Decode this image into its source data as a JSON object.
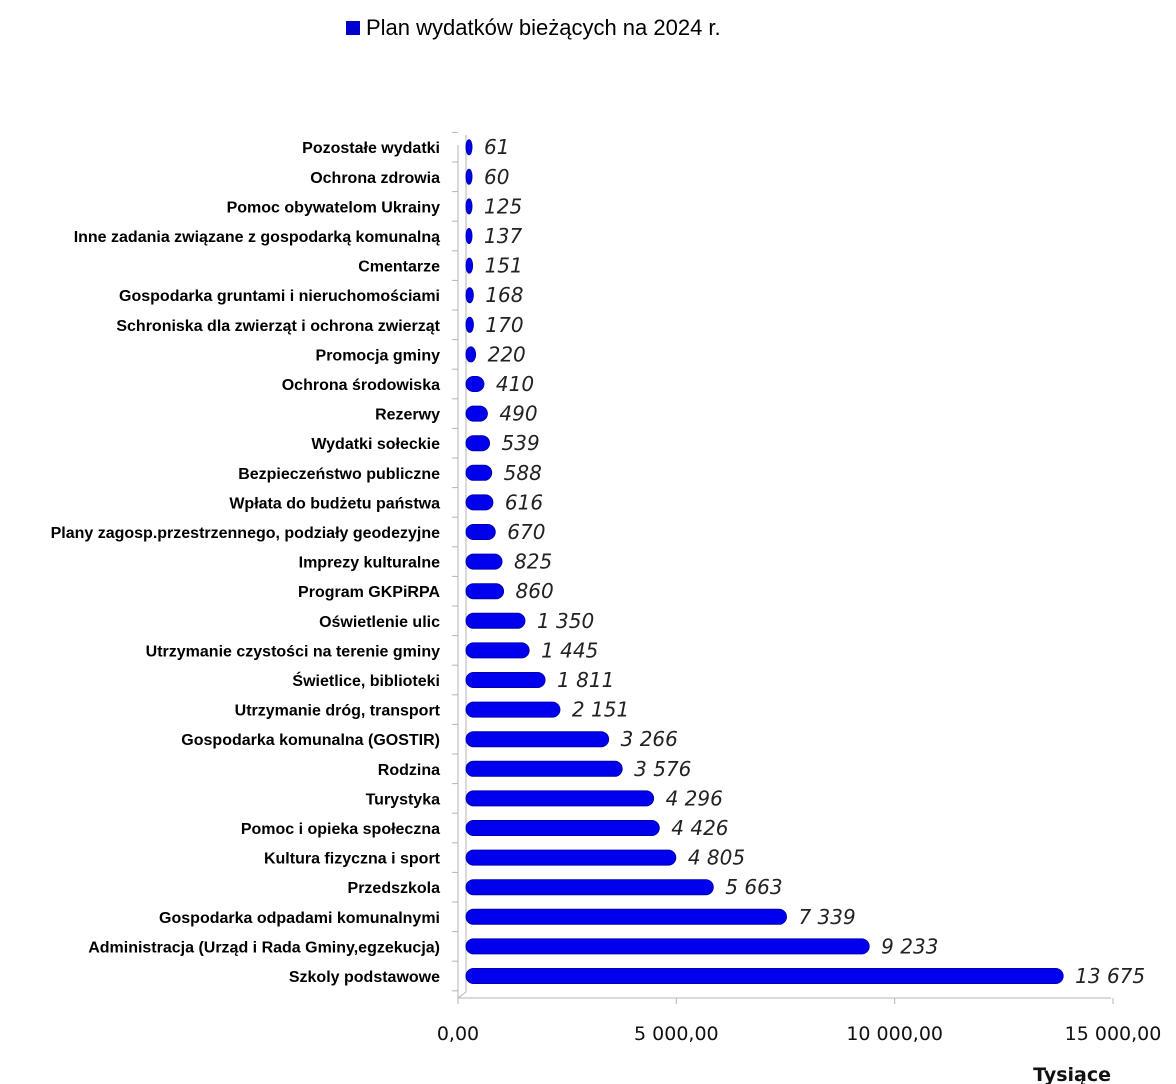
{
  "chart_data": {
    "type": "bar",
    "orientation": "horizontal",
    "legend": {
      "label": "Plan wydatków bieżących na 2024 r.",
      "position": "top",
      "color": "#0000CC"
    },
    "series": [
      {
        "name": "Plan wydatków bieżących na 2024 r.",
        "color": "#0000EE"
      }
    ],
    "categories": [
      "Szkoly podstawowe",
      "Administracja (Urząd i Rada Gminy,egzekucja)",
      "Gospodarka odpadami komunalnymi",
      "Przedszkola",
      "Kultura fizyczna i sport",
      "Pomoc i opieka społeczna",
      "Turystyka",
      "Rodzina",
      "Gospodarka komunalna (GOSTIR)",
      "Utrzymanie dróg, transport",
      "Świetlice, biblioteki",
      "Utrzymanie czystości na terenie gminy",
      "Oświetlenie ulic",
      "Program GKPiRPA",
      "Imprezy kulturalne",
      "Plany zagosp.przestrzennego, podziały geodezyjne",
      "Wpłata do budżetu państwa",
      "Bezpieczeństwo publiczne",
      "Wydatki sołeckie",
      "Rezerwy",
      "Ochrona środowiska",
      "Promocja gminy",
      "Schroniska dla zwierząt i ochrona zwierząt",
      "Gospodarka gruntami i nieruchomościami",
      "Cmentarze",
      "Inne zadania związane z gospodarką komunalną",
      "Pomoc obywatelom Ukrainy",
      "Ochrona zdrowia",
      "Pozostałe wydatki"
    ],
    "values": [
      13675,
      9233,
      7339,
      5663,
      4805,
      4426,
      4296,
      3576,
      3266,
      2151,
      1811,
      1445,
      1350,
      860,
      825,
      670,
      616,
      588,
      539,
      490,
      410,
      220,
      170,
      168,
      151,
      137,
      125,
      60,
      61
    ],
    "value_labels": [
      "13 675",
      "9 233",
      "7 339",
      "5 663",
      "4 805",
      "4 426",
      "4 296",
      "3 576",
      "3 266",
      "2 151",
      "1 811",
      "1 445",
      "1 350",
      "860",
      "825",
      "670",
      "616",
      "588",
      "539",
      "490",
      "410",
      "220",
      "170",
      "168",
      "151",
      "137",
      "125",
      "60",
      "61"
    ],
    "xlim": [
      0,
      15000
    ],
    "x_ticks": [
      0,
      5000,
      10000,
      15000
    ],
    "x_tick_labels": [
      "0,00",
      "5 000,00",
      "10 000,00",
      "15 000,00"
    ],
    "x_unit_label": "Tysiące",
    "grid": false
  }
}
